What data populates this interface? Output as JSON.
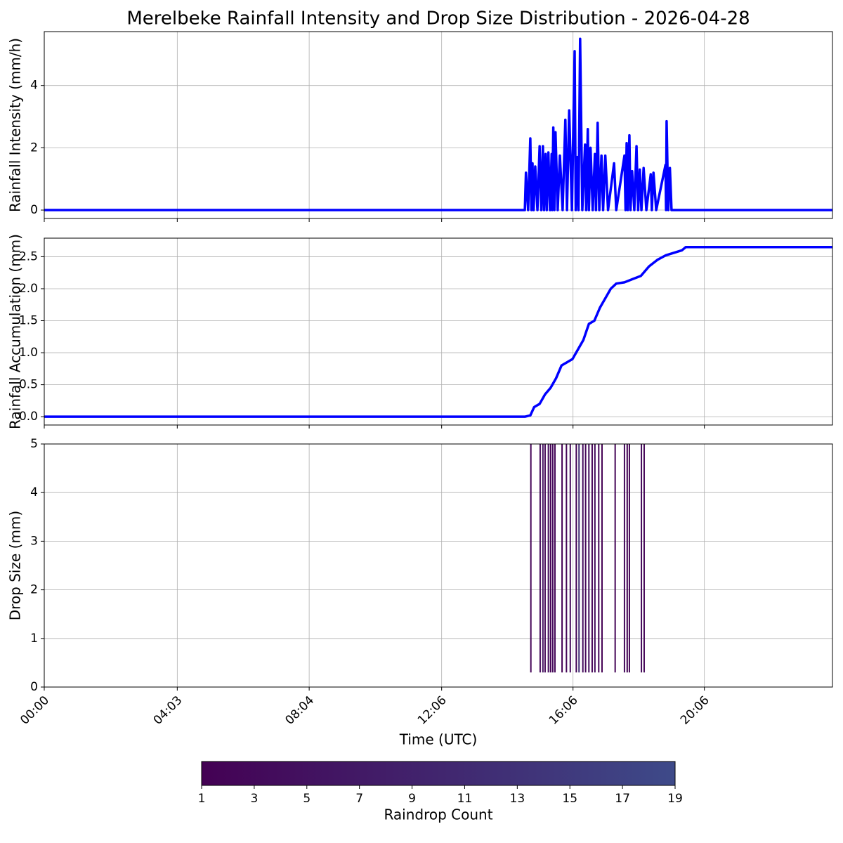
{
  "chart_data": [
    {
      "type": "line",
      "title": "Merelbeke Rainfall Intensity and Drop Size Distribution - 2026-04-28",
      "ylabel": "Rainfall Intensity (mm/h)",
      "color": "#0000ff",
      "grid": true,
      "ylim": [
        -0.27,
        5.73
      ],
      "yticks": [
        0,
        2,
        4
      ],
      "x": [
        0,
        878,
        880,
        884,
        888,
        890,
        892,
        894,
        897,
        901,
        905,
        908,
        911,
        913,
        916,
        918,
        921,
        924,
        927,
        928,
        930,
        932,
        934,
        938,
        942,
        947,
        952,
        955,
        959,
        964,
        969,
        971,
        974,
        976,
        979,
        983,
        988,
        990,
        993,
        995,
        998,
        1002,
        1006,
        1008,
        1011,
        1014,
        1018,
        1021,
        1025,
        1030,
        1041,
        1045,
        1060,
        1062,
        1064,
        1066,
        1069,
        1071,
        1074,
        1078,
        1082,
        1085,
        1088,
        1091,
        1095,
        1100,
        1108,
        1110,
        1113,
        1118,
        1135,
        1136,
        1137,
        1140,
        1143,
        1146,
        1440
      ],
      "values": [
        0,
        0,
        1.2,
        0,
        2.3,
        0,
        1.5,
        0,
        1.4,
        0,
        2.05,
        0,
        2.05,
        0,
        1.8,
        0,
        1.85,
        0,
        1.8,
        0,
        2.65,
        0,
        2.5,
        0,
        1.75,
        0,
        2.9,
        0,
        3.2,
        0,
        5.1,
        0,
        1.7,
        0,
        5.5,
        0,
        2.1,
        0,
        2.6,
        0,
        2.0,
        0,
        1.8,
        0,
        2.8,
        0,
        1.75,
        0,
        1.75,
        0,
        1.5,
        0,
        1.75,
        0,
        2.15,
        0,
        2.4,
        0,
        1.25,
        0,
        2.05,
        0,
        1.3,
        0,
        1.35,
        0,
        1.15,
        0,
        1.2,
        0,
        1.45,
        0,
        2.85,
        0,
        1.35,
        0,
        0
      ]
    },
    {
      "type": "line",
      "ylabel": "Rainfall Accumulation (mm)",
      "color": "#0000ff",
      "grid": true,
      "ylim": [
        -0.13,
        2.79
      ],
      "yticks": [
        {
          "value": 0,
          "label": "0.0"
        },
        {
          "value": 0.5,
          "label": "0.5"
        },
        {
          "value": 1,
          "label": "1.0"
        },
        {
          "value": 1.5,
          "label": "1.5"
        },
        {
          "value": 2,
          "label": "2.0"
        },
        {
          "value": 2.5,
          "label": "2.5"
        }
      ],
      "x": [
        0,
        878,
        888,
        895,
        905,
        915,
        925,
        935,
        945,
        955,
        965,
        975,
        985,
        995,
        1005,
        1015,
        1025,
        1035,
        1045,
        1060,
        1075,
        1090,
        1105,
        1120,
        1135,
        1150,
        1165,
        1172,
        1440
      ],
      "values": [
        0,
        0,
        0.02,
        0.15,
        0.2,
        0.35,
        0.45,
        0.6,
        0.8,
        0.85,
        0.9,
        1.05,
        1.2,
        1.45,
        1.5,
        1.7,
        1.85,
        2.0,
        2.08,
        2.1,
        2.15,
        2.2,
        2.35,
        2.45,
        2.52,
        2.56,
        2.6,
        2.65,
        2.65
      ]
    },
    {
      "type": "heatmap",
      "ylabel": "Drop Size (mm)",
      "xlabel": "Time (UTC)",
      "grid": true,
      "xlim": [
        0,
        1440
      ],
      "xticks": [
        {
          "value": 0,
          "label": "00:00"
        },
        {
          "value": 243,
          "label": "04:03"
        },
        {
          "value": 484,
          "label": "08:04"
        },
        {
          "value": 726,
          "label": "12:06"
        },
        {
          "value": 966,
          "label": "16:06"
        },
        {
          "value": 1206,
          "label": "20:06"
        }
      ],
      "ylim": [
        0,
        5
      ],
      "yticks": [
        0,
        1,
        2,
        3,
        4,
        5
      ],
      "drop_size_range": [
        0.3,
        5
      ],
      "x": [
        889,
        906,
        911,
        915,
        921,
        925,
        929,
        933,
        946,
        954,
        961,
        972,
        977,
        984,
        989,
        995,
        1001,
        1006,
        1013,
        1019,
        1043,
        1060,
        1065,
        1069,
        1091,
        1096
      ],
      "values": [
        2,
        3,
        5,
        2,
        4,
        1,
        3,
        2,
        1,
        2,
        3,
        2,
        12,
        3,
        2,
        4,
        1,
        3,
        2,
        1,
        2,
        3,
        1,
        2,
        3,
        2
      ],
      "colormap": [
        "#440154",
        "#3e4a89"
      ],
      "colorbar": {
        "label": "Raindrop Count",
        "lim": [
          1,
          19
        ],
        "ticks": [
          1,
          3,
          5,
          7,
          9,
          11,
          13,
          15,
          17,
          19
        ]
      }
    }
  ]
}
